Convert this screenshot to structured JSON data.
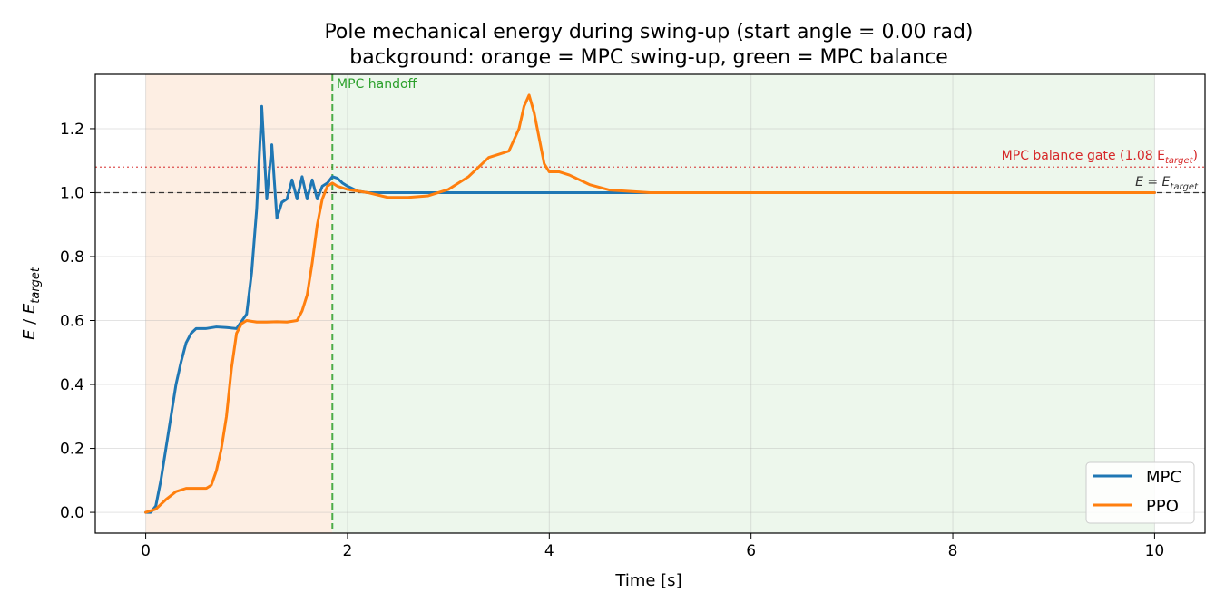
{
  "chart_data": {
    "type": "line",
    "title": "Pole mechanical energy during swing-up (start angle = 0.00 rad)",
    "subtitle": "background: orange = MPC swing-up, green = MPC balance",
    "xlabel": "Time [s]",
    "ylabel_main": "E",
    "ylabel_sep": " / ",
    "ylabel_sym": "E",
    "ylabel_sub": "target",
    "xlim": [
      -0.5,
      10.5
    ],
    "ylim": [
      -0.065,
      1.37
    ],
    "x_ticks": [
      0,
      2,
      4,
      6,
      8,
      10
    ],
    "y_ticks": [
      0.0,
      0.2,
      0.4,
      0.6,
      0.8,
      1.0,
      1.2
    ],
    "x_tick_labels": [
      "0",
      "2",
      "4",
      "6",
      "8",
      "10"
    ],
    "y_tick_labels": [
      "0.0",
      "0.2",
      "0.4",
      "0.6",
      "0.8",
      "1.0",
      "1.2"
    ],
    "grid": true,
    "legend_position": "lower-right",
    "regions": [
      {
        "name": "MPC swing-up",
        "x0": 0.0,
        "x1": 1.85,
        "color": "#fdeee3"
      },
      {
        "name": "MPC balance",
        "x0": 1.85,
        "x1": 10.0,
        "color": "#edf7ec"
      }
    ],
    "handoff": {
      "x": 1.85,
      "label": "MPC handoff",
      "color": "#2ca02c"
    },
    "reference_lines": [
      {
        "y": 1.0,
        "label_main": "E = E",
        "label_sub": "target",
        "color": "#222222",
        "style": "dashed"
      },
      {
        "y": 1.08,
        "label_main": "MPC balance gate (1.08 E",
        "label_sub": "target",
        "label_end": ")",
        "color": "#d62728",
        "style": "dotted"
      }
    ],
    "series": [
      {
        "name": "MPC",
        "color": "#1f77b4",
        "x": [
          0,
          0.05,
          0.1,
          0.15,
          0.2,
          0.25,
          0.3,
          0.35,
          0.4,
          0.45,
          0.5,
          0.55,
          0.6,
          0.7,
          0.8,
          0.9,
          1.0,
          1.05,
          1.1,
          1.15,
          1.2,
          1.25,
          1.3,
          1.35,
          1.4,
          1.45,
          1.5,
          1.55,
          1.6,
          1.65,
          1.7,
          1.75,
          1.8,
          1.85,
          1.9,
          1.95,
          2.0,
          2.1,
          2.2,
          2.3,
          2.5,
          3.0,
          4.0,
          5.0,
          6.0,
          7.0,
          8.0,
          9.0,
          10.0
        ],
        "y": [
          0.0,
          0.0,
          0.02,
          0.1,
          0.2,
          0.3,
          0.4,
          0.47,
          0.53,
          0.56,
          0.575,
          0.575,
          0.575,
          0.58,
          0.578,
          0.575,
          0.62,
          0.75,
          0.95,
          1.27,
          0.98,
          1.15,
          0.92,
          0.97,
          0.98,
          1.04,
          0.98,
          1.05,
          0.98,
          1.04,
          0.98,
          1.02,
          1.03,
          1.05,
          1.045,
          1.03,
          1.02,
          1.005,
          1.0,
          1.0,
          1.0,
          1.0,
          1.0,
          1.0,
          1.0,
          1.0,
          1.0,
          1.0,
          1.0
        ]
      },
      {
        "name": "PPO",
        "color": "#ff7f0e",
        "x": [
          0,
          0.1,
          0.2,
          0.3,
          0.4,
          0.5,
          0.6,
          0.65,
          0.7,
          0.75,
          0.8,
          0.85,
          0.9,
          0.95,
          1.0,
          1.1,
          1.2,
          1.3,
          1.4,
          1.5,
          1.55,
          1.6,
          1.65,
          1.7,
          1.75,
          1.8,
          1.85,
          1.9,
          2.0,
          2.2,
          2.4,
          2.6,
          2.8,
          3.0,
          3.2,
          3.4,
          3.5,
          3.6,
          3.7,
          3.75,
          3.8,
          3.85,
          3.9,
          3.95,
          4.0,
          4.1,
          4.2,
          4.4,
          4.6,
          5.0,
          6.0,
          7.0,
          8.0,
          9.0,
          10.0
        ],
        "y": [
          0.0,
          0.01,
          0.04,
          0.065,
          0.075,
          0.075,
          0.075,
          0.085,
          0.13,
          0.2,
          0.3,
          0.45,
          0.56,
          0.59,
          0.6,
          0.595,
          0.595,
          0.596,
          0.595,
          0.6,
          0.63,
          0.68,
          0.78,
          0.9,
          0.98,
          1.02,
          1.03,
          1.02,
          1.01,
          1.0,
          0.985,
          0.985,
          0.99,
          1.01,
          1.05,
          1.11,
          1.12,
          1.13,
          1.2,
          1.27,
          1.305,
          1.25,
          1.17,
          1.09,
          1.065,
          1.065,
          1.055,
          1.025,
          1.008,
          1.0,
          1.0,
          1.0,
          1.0,
          1.0,
          1.0
        ]
      }
    ]
  }
}
